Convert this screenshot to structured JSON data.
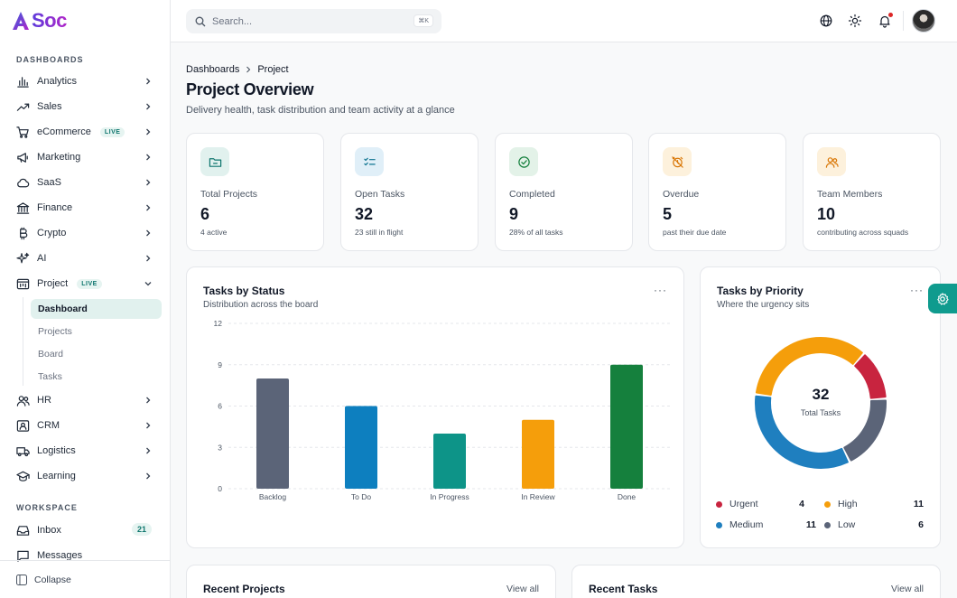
{
  "brand": {
    "name": "Soc",
    "logo_letter": "A"
  },
  "sidebar": {
    "sections": {
      "dashboards": "DASHBOARDS",
      "workspace": "WORKSPACE"
    },
    "items": [
      {
        "label": "Analytics",
        "icon": "chart-bar-icon"
      },
      {
        "label": "Sales",
        "icon": "trending-up-icon"
      },
      {
        "label": "eCommerce",
        "icon": "cart-icon",
        "badge": "LIVE"
      },
      {
        "label": "Marketing",
        "icon": "megaphone-icon"
      },
      {
        "label": "SaaS",
        "icon": "cloud-icon"
      },
      {
        "label": "Finance",
        "icon": "bank-icon"
      },
      {
        "label": "Crypto",
        "icon": "bitcoin-icon"
      },
      {
        "label": "AI",
        "icon": "sparkles-icon"
      },
      {
        "label": "Project",
        "icon": "project-icon",
        "badge": "LIVE",
        "expanded": true
      },
      {
        "label": "HR",
        "icon": "users-icon"
      },
      {
        "label": "CRM",
        "icon": "contact-icon"
      },
      {
        "label": "Logistics",
        "icon": "truck-icon"
      },
      {
        "label": "Learning",
        "icon": "graduation-cap-icon"
      }
    ],
    "project_sub": [
      "Dashboard",
      "Projects",
      "Board",
      "Tasks"
    ],
    "active_sub": "Dashboard",
    "workspace_items": [
      {
        "label": "Inbox",
        "icon": "inbox-icon",
        "count": "21"
      },
      {
        "label": "Messages",
        "icon": "message-icon"
      }
    ],
    "collapse_label": "Collapse"
  },
  "topbar": {
    "search_placeholder": "Search...",
    "search_shortcut": "⌘K",
    "icons": [
      "globe-icon",
      "sun-icon",
      "bell-icon"
    ],
    "has_notification": true
  },
  "page": {
    "breadcrumb": [
      "Dashboards",
      "Project"
    ],
    "title": "Project Overview",
    "subtitle": "Delivery health, task distribution and team activity at a glance"
  },
  "stats": [
    {
      "label": "Total Projects",
      "value": "6",
      "note": "4 active",
      "icon": "folder-icon",
      "tint": "#e1f1ee",
      "color": "#0f766e"
    },
    {
      "label": "Open Tasks",
      "value": "32",
      "note": "23 still in flight",
      "icon": "checklist-icon",
      "tint": "#e0eff8",
      "color": "#0e7490"
    },
    {
      "label": "Completed",
      "value": "9",
      "note": "28% of all tasks",
      "icon": "check-circle-icon",
      "tint": "#e3f2e8",
      "color": "#15803d"
    },
    {
      "label": "Overdue",
      "value": "5",
      "note": "past their due date",
      "icon": "alarm-off-icon",
      "tint": "#fdf1dc",
      "color": "#d97706"
    },
    {
      "label": "Team Members",
      "value": "10",
      "note": "contributing across squads",
      "icon": "users-icon",
      "tint": "#fdf1dc",
      "color": "#d97706"
    }
  ],
  "status_chart": {
    "title": "Tasks by Status",
    "subtitle": "Distribution across the board",
    "more": "···"
  },
  "priority_chart": {
    "title": "Tasks by Priority",
    "subtitle": "Where the urgency sits",
    "more": "···",
    "center_value": "32",
    "center_label": "Total Tasks"
  },
  "chart_data": [
    {
      "type": "bar",
      "title": "Tasks by Status",
      "subtitle": "Distribution across the board",
      "categories": [
        "Backlog",
        "To Do",
        "In Progress",
        "In Review",
        "Done"
      ],
      "values": [
        8,
        6,
        4,
        5,
        9
      ],
      "colors": [
        "#5b6478",
        "#0d7fbf",
        "#0d9488",
        "#f59e0b",
        "#15803d"
      ],
      "ylim": [
        0,
        12
      ],
      "yticks": [
        0,
        3,
        6,
        9,
        12
      ],
      "grid": true
    },
    {
      "type": "pie",
      "title": "Tasks by Priority",
      "subtitle": "Where the urgency sits",
      "categories": [
        "Urgent",
        "High",
        "Medium",
        "Low"
      ],
      "values": [
        4,
        11,
        11,
        6
      ],
      "colors": [
        "#c8243f",
        "#f59e0b",
        "#1f7fbf",
        "#5b6478"
      ],
      "total": 32,
      "legend": "bottom"
    }
  ],
  "bottom": {
    "recent_projects": {
      "title": "Recent Projects",
      "action": "View all"
    },
    "recent_tasks": {
      "title": "Recent Tasks",
      "action": "View all"
    }
  }
}
